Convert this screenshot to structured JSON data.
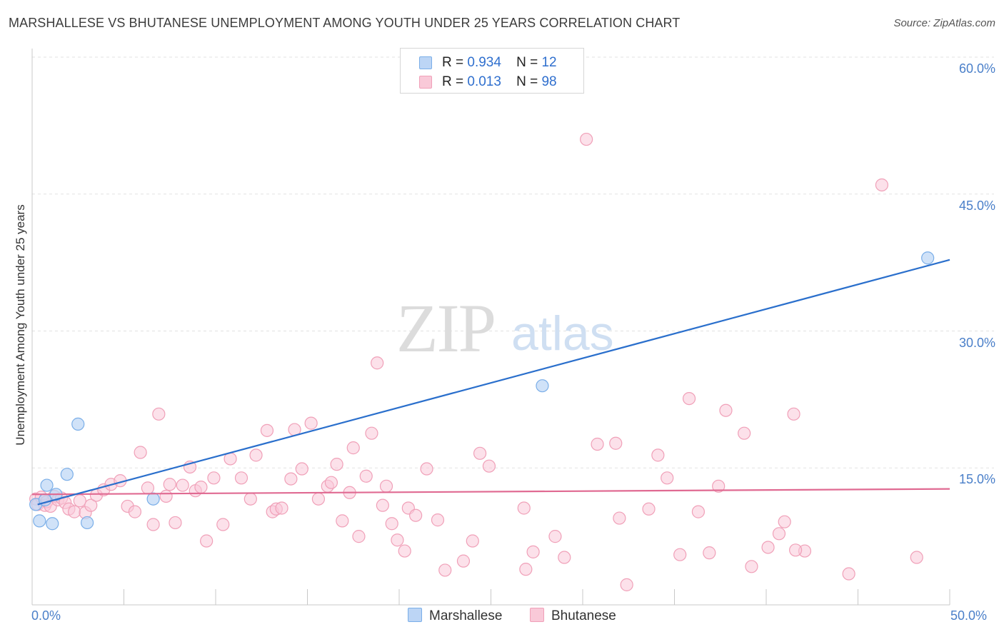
{
  "chart_data": {
    "type": "scatter",
    "title": "MARSHALLESE VS BHUTANESE UNEMPLOYMENT AMONG YOUTH UNDER 25 YEARS CORRELATION CHART",
    "source": "Source: ZipAtlas.com",
    "xlabel": "",
    "ylabel": "Unemployment Among Youth under 25 years",
    "xlim": [
      0,
      50
    ],
    "ylim": [
      0,
      60
    ],
    "x_tick_labels": [
      "0.0%",
      "50.0%"
    ],
    "y_tick_values": [
      15,
      30,
      45,
      60
    ],
    "y_tick_labels": [
      "15.0%",
      "30.0%",
      "45.0%",
      "60.0%"
    ],
    "watermark": "ZIPatlas",
    "legend_stats": [
      {
        "name": "Marshallese",
        "r_label": "R =",
        "r_value": "0.934",
        "n_label": "N =",
        "n_value": "12"
      },
      {
        "name": "Bhutanese",
        "r_label": "R =",
        "r_value": "0.013",
        "n_label": "N =",
        "n_value": "98"
      }
    ],
    "series": [
      {
        "name": "Marshallese",
        "color": "#7aaee8",
        "fill": "#bcd5f5",
        "trend_color": "#2a6fcc",
        "trend": {
          "x": [
            0.3,
            50
          ],
          "y": [
            11.0,
            37.8
          ]
        },
        "points": [
          [
            0.2,
            11.0
          ],
          [
            0.4,
            9.2
          ],
          [
            0.7,
            11.5
          ],
          [
            0.8,
            13.1
          ],
          [
            1.1,
            8.9
          ],
          [
            1.3,
            12.1
          ],
          [
            1.9,
            14.3
          ],
          [
            2.5,
            19.8
          ],
          [
            3.0,
            9.0
          ],
          [
            6.6,
            11.6
          ],
          [
            27.8,
            24.0
          ],
          [
            48.8,
            38.0
          ]
        ]
      },
      {
        "name": "Bhutanese",
        "color": "#f0a0b8",
        "fill": "#f9c9d8",
        "trend_color": "#e06a92",
        "trend": {
          "x": [
            0,
            50
          ],
          "y": [
            12.1,
            12.7
          ]
        },
        "points": [
          [
            0.2,
            11.6
          ],
          [
            0.3,
            11.0
          ],
          [
            0.5,
            11.8
          ],
          [
            0.7,
            10.9
          ],
          [
            0.8,
            11.3
          ],
          [
            1.0,
            10.8
          ],
          [
            1.2,
            11.9
          ],
          [
            1.4,
            11.5
          ],
          [
            1.6,
            11.7
          ],
          [
            1.8,
            11.2
          ],
          [
            2.0,
            10.5
          ],
          [
            2.3,
            10.2
          ],
          [
            2.6,
            11.4
          ],
          [
            2.9,
            10.1
          ],
          [
            3.2,
            10.9
          ],
          [
            3.5,
            12.0
          ],
          [
            3.9,
            12.6
          ],
          [
            4.3,
            13.2
          ],
          [
            4.8,
            13.6
          ],
          [
            5.2,
            10.8
          ],
          [
            5.6,
            10.2
          ],
          [
            5.9,
            16.7
          ],
          [
            6.3,
            12.8
          ],
          [
            6.6,
            8.8
          ],
          [
            6.9,
            20.9
          ],
          [
            7.3,
            11.9
          ],
          [
            7.5,
            13.2
          ],
          [
            7.8,
            9.0
          ],
          [
            8.2,
            13.1
          ],
          [
            8.6,
            15.1
          ],
          [
            8.9,
            12.5
          ],
          [
            9.2,
            12.9
          ],
          [
            9.5,
            7.0
          ],
          [
            9.9,
            13.9
          ],
          [
            10.4,
            8.8
          ],
          [
            10.8,
            16.0
          ],
          [
            11.4,
            13.9
          ],
          [
            11.9,
            11.6
          ],
          [
            12.2,
            16.4
          ],
          [
            12.8,
            19.1
          ],
          [
            13.1,
            10.2
          ],
          [
            13.3,
            10.5
          ],
          [
            13.6,
            10.6
          ],
          [
            14.1,
            13.8
          ],
          [
            14.3,
            19.2
          ],
          [
            14.7,
            14.9
          ],
          [
            15.2,
            19.9
          ],
          [
            15.6,
            11.6
          ],
          [
            16.1,
            13.0
          ],
          [
            16.3,
            13.4
          ],
          [
            16.6,
            15.4
          ],
          [
            16.9,
            9.2
          ],
          [
            17.3,
            12.3
          ],
          [
            17.5,
            17.2
          ],
          [
            17.8,
            7.5
          ],
          [
            18.2,
            14.1
          ],
          [
            18.5,
            18.8
          ],
          [
            18.8,
            26.5
          ],
          [
            19.1,
            10.9
          ],
          [
            19.3,
            13.0
          ],
          [
            19.6,
            8.9
          ],
          [
            19.9,
            7.1
          ],
          [
            20.3,
            5.9
          ],
          [
            20.5,
            10.6
          ],
          [
            20.9,
            9.8
          ],
          [
            21.5,
            14.9
          ],
          [
            22.1,
            9.3
          ],
          [
            22.5,
            3.8
          ],
          [
            23.5,
            4.8
          ],
          [
            24.0,
            7.0
          ],
          [
            24.4,
            16.6
          ],
          [
            24.9,
            15.2
          ],
          [
            26.8,
            10.6
          ],
          [
            26.9,
            3.9
          ],
          [
            27.3,
            5.8
          ],
          [
            28.5,
            7.5
          ],
          [
            29.0,
            5.2
          ],
          [
            30.2,
            51.0
          ],
          [
            30.8,
            17.6
          ],
          [
            31.8,
            17.7
          ],
          [
            32.0,
            9.5
          ],
          [
            32.4,
            2.2
          ],
          [
            33.6,
            10.5
          ],
          [
            34.1,
            16.4
          ],
          [
            34.6,
            13.9
          ],
          [
            35.3,
            5.5
          ],
          [
            35.8,
            22.6
          ],
          [
            36.3,
            10.2
          ],
          [
            36.9,
            5.7
          ],
          [
            37.4,
            13.0
          ],
          [
            37.8,
            21.3
          ],
          [
            38.8,
            18.8
          ],
          [
            39.2,
            4.2
          ],
          [
            40.1,
            6.3
          ],
          [
            40.7,
            7.8
          ],
          [
            41.0,
            9.1
          ],
          [
            41.5,
            20.9
          ],
          [
            44.5,
            3.4
          ]
        ]
      }
    ],
    "extra_bhutanese_points": [
      [
        46.3,
        46.0
      ],
      [
        42.1,
        5.9
      ],
      [
        48.2,
        5.2
      ],
      [
        41.6,
        6.0
      ]
    ]
  }
}
